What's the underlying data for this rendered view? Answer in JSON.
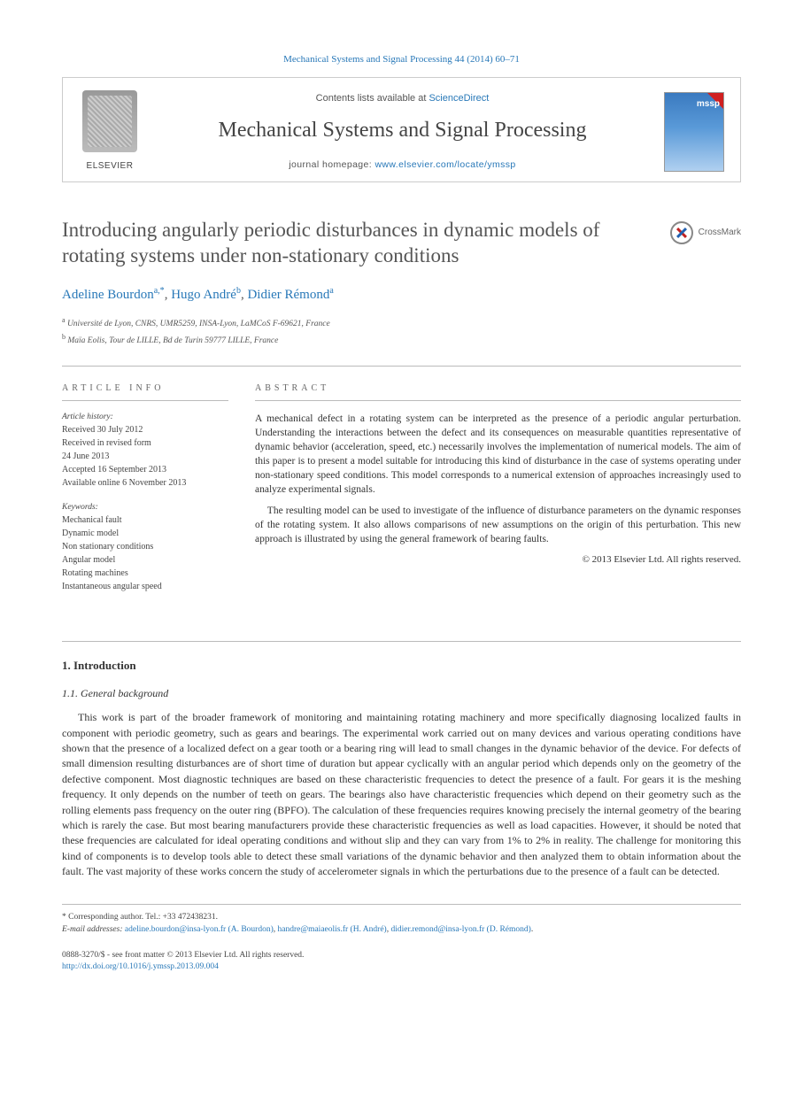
{
  "citation_line": "Mechanical Systems and Signal Processing 44 (2014) 60–71",
  "header": {
    "contents_prefix": "Contents lists available at ",
    "contents_link": "ScienceDirect",
    "journal": "Mechanical Systems and Signal Processing",
    "homepage_prefix": "journal homepage: ",
    "homepage_url": "www.elsevier.com/locate/ymssp",
    "publisher_logo_label": "ELSEVIER",
    "cover_label": "mssp"
  },
  "article": {
    "title": "Introducing angularly periodic disturbances in dynamic models of rotating systems under non-stationary conditions",
    "crossmark": "CrossMark",
    "authors_html": {
      "a1_name": "Adeline Bourdon",
      "a1_sup": "a,*",
      "a2_name": "Hugo André",
      "a2_sup": "b",
      "a3_name": "Didier Rémond",
      "a3_sup": "a"
    },
    "affiliations": {
      "a": "Université de Lyon, CNRS, UMR5259, INSA-Lyon, LaMCoS F-69621, France",
      "b": "Maïa Eolis, Tour de LILLE, Bd de Turin 59777 LILLE, France"
    }
  },
  "info": {
    "heading": "article info",
    "history_label": "Article history:",
    "history": {
      "received": "Received 30 July 2012",
      "revised1": "Received in revised form",
      "revised2": "24 June 2013",
      "accepted": "Accepted 16 September 2013",
      "online": "Available online 6 November 2013"
    },
    "keywords_label": "Keywords:",
    "keywords": [
      "Mechanical fault",
      "Dynamic model",
      "Non stationary conditions",
      "Angular model",
      "Rotating machines",
      "Instantaneous angular speed"
    ]
  },
  "abstract": {
    "heading": "abstract",
    "p1": "A mechanical defect in a rotating system can be interpreted as the presence of a periodic angular perturbation. Understanding the interactions between the defect and its consequences on measurable quantities representative of dynamic behavior (acceleration, speed, etc.) necessarily involves the implementation of numerical models. The aim of this paper is to present a model suitable for introducing this kind of disturbance in the case of systems operating under non-stationary speed conditions. This model corresponds to a numerical extension of approaches increasingly used to analyze experimental signals.",
    "p2": "The resulting model can be used to investigate of the influence of disturbance parameters on the dynamic responses of the rotating system. It also allows comparisons of new assumptions on the origin of this perturbation. This new approach is illustrated by using the general framework of bearing faults.",
    "copyright": "© 2013 Elsevier Ltd. All rights reserved."
  },
  "body": {
    "s1": "1.  Introduction",
    "s11": "1.1.  General background",
    "para": "This work is part of the broader framework of monitoring and maintaining rotating machinery and more specifically diagnosing localized faults in component with periodic geometry, such as gears and bearings. The experimental work carried out on many devices and various operating conditions have shown that the presence of a localized defect on a gear tooth or a bearing ring will lead to small changes in the dynamic behavior of the device. For defects of small dimension resulting disturbances are of short time of duration but appear cyclically with an angular period which depends only on the geometry of the defective component. Most diagnostic techniques are based on these characteristic frequencies to detect the presence of a fault. For gears it is the meshing frequency. It only depends on the number of teeth on gears. The bearings also have characteristic frequencies which depend on their geometry such as the rolling elements pass frequency on the outer ring (BPFO). The calculation of these frequencies requires knowing precisely the internal geometry of the bearing which is rarely the case. But most bearing manufacturers provide these characteristic frequencies as well as load capacities. However, it should be noted that these frequencies are calculated for ideal operating conditions and without slip and they can vary from 1% to 2% in reality. The challenge for monitoring this kind of components is to develop tools able to detect these small variations of the dynamic behavior and then analyzed them to obtain information about the fault. The vast majority of these works concern the study of accelerometer signals in which the perturbations due to the presence of a fault can be detected."
  },
  "footnotes": {
    "corr": "* Corresponding author. Tel.: +33 472438231.",
    "email_label": "E-mail addresses: ",
    "emails": {
      "e1": "adeline.bourdon@insa-lyon.fr (A. Bourdon)",
      "e2": "handre@maiaeolis.fr (H. André)",
      "e3": "didier.remond@insa-lyon.fr (D. Rémond)"
    }
  },
  "bottom": {
    "issn": "0888-3270/$ - see front matter © 2013 Elsevier Ltd. All rights reserved.",
    "doi": "http://dx.doi.org/10.1016/j.ymssp.2013.09.004"
  },
  "colors": {
    "link": "#2878b8",
    "text": "#333333",
    "muted": "#555555",
    "rule": "#bbbbbb"
  }
}
